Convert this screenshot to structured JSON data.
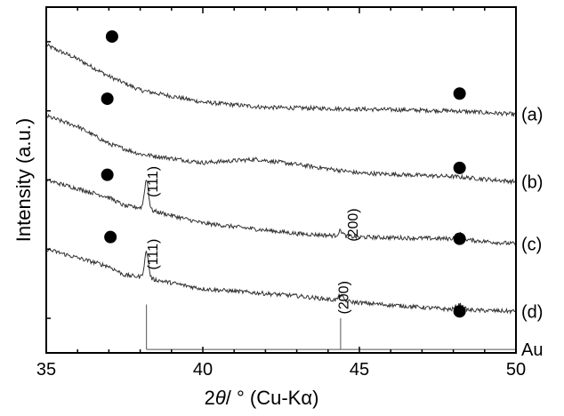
{
  "chart_data": {
    "type": "line",
    "title": "",
    "xlabel": "2θ / ° (Cu-Kα)",
    "xlabel_parts": {
      "symbol": "2",
      "theta": "θ",
      "rest": "/ ° (Cu-Kα)"
    },
    "ylabel": "Intensity (a.u.)",
    "xlim": [
      35,
      50
    ],
    "ylim": [
      0,
      10
    ],
    "xticks": [
      "35",
      "40",
      "45",
      "50"
    ],
    "yticks_shown": false,
    "grid": false,
    "series": [
      {
        "name": "(a)",
        "baseline": [
          [
            35,
            8.9
          ],
          [
            36,
            8.5
          ],
          [
            37,
            8.0
          ],
          [
            38,
            7.6
          ],
          [
            40,
            7.25
          ],
          [
            42,
            7.1
          ],
          [
            45,
            7.05
          ],
          [
            48,
            7.0
          ],
          [
            50,
            6.9
          ]
        ],
        "noise": 0.06
      },
      {
        "name": "(b)",
        "baseline": [
          [
            35,
            6.85
          ],
          [
            36,
            6.55
          ],
          [
            37,
            6.05
          ],
          [
            38,
            5.75
          ],
          [
            40,
            5.5
          ],
          [
            41.7,
            5.6
          ],
          [
            43,
            5.45
          ],
          [
            45,
            5.2
          ],
          [
            48,
            5.1
          ],
          [
            50,
            4.95
          ]
        ],
        "noise": 0.06
      },
      {
        "name": "(c)",
        "baseline": [
          [
            35,
            5.0
          ],
          [
            36,
            4.75
          ],
          [
            37,
            4.5
          ],
          [
            37.5,
            4.25
          ],
          [
            38,
            4.2
          ],
          [
            40,
            3.75
          ],
          [
            43,
            3.45
          ],
          [
            45,
            3.35
          ],
          [
            48,
            3.3
          ],
          [
            50,
            3.15
          ]
        ],
        "peaks": [
          [
            38.2,
            0.85,
            0.09
          ],
          [
            44.4,
            0.15,
            0.1
          ],
          [
            48.2,
            0.15,
            0.15
          ]
        ],
        "noise": 0.06
      },
      {
        "name": "(d)",
        "baseline": [
          [
            35,
            3.0
          ],
          [
            36,
            2.75
          ],
          [
            37,
            2.5
          ],
          [
            37.5,
            2.25
          ],
          [
            38,
            2.2
          ],
          [
            40,
            1.85
          ],
          [
            43,
            1.65
          ],
          [
            45,
            1.45
          ],
          [
            48,
            1.25
          ],
          [
            50,
            1.2
          ]
        ],
        "peaks": [
          [
            38.2,
            0.75,
            0.09
          ],
          [
            44.4,
            0.15,
            0.1
          ],
          [
            48.2,
            0.15,
            0.15
          ]
        ],
        "noise": 0.06
      }
    ],
    "markers": [
      {
        "x": 37.1,
        "y": 9.15
      },
      {
        "x": 48.2,
        "y": 7.5
      },
      {
        "x": 36.95,
        "y": 7.35
      },
      {
        "x": 48.2,
        "y": 5.35
      },
      {
        "x": 36.95,
        "y": 5.15
      },
      {
        "x": 48.2,
        "y": 3.3
      },
      {
        "x": 37.05,
        "y": 3.35
      },
      {
        "x": 48.2,
        "y": 1.2
      }
    ],
    "peak_annotations": [
      {
        "text": "(111)",
        "x": 38.55,
        "y": 4.95
      },
      {
        "text": "(200)",
        "x": 44.95,
        "y": 3.7
      },
      {
        "text": "(111)",
        "x": 38.55,
        "y": 2.85
      },
      {
        "text": "(200)",
        "x": 44.65,
        "y": 1.6
      }
    ],
    "reference": {
      "name": "Au",
      "baseline_y": 0.1,
      "lines": [
        {
          "x": 38.2,
          "height": 1.3
        },
        {
          "x": 44.4,
          "height": 0.9
        }
      ]
    }
  }
}
